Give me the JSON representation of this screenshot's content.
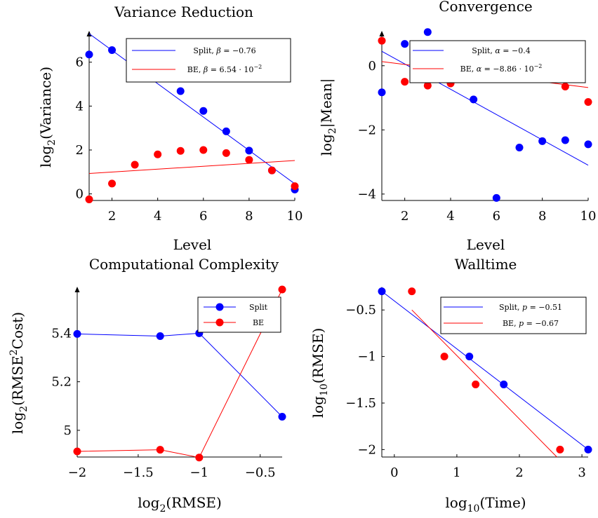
{
  "chart_data": [
    {
      "type": "scatter",
      "title": "Variance Reduction",
      "xlabel": "Level",
      "ylabel": "log2(Variance)",
      "ylabel_parts": {
        "pre": "log",
        "sub": "2",
        "post": "(Variance)"
      },
      "xlim": [
        1,
        10
      ],
      "ylim": [
        -0.3,
        7.3
      ],
      "xticks": [
        2,
        4,
        6,
        8,
        10
      ],
      "yticks": [
        0,
        2,
        4,
        6
      ],
      "legend_position": "top-right",
      "series": [
        {
          "name": "Split",
          "color": "#0000ff",
          "x": [
            1,
            2,
            5,
            6,
            7,
            8,
            9,
            10
          ],
          "y": [
            6.35,
            6.55,
            4.68,
            3.78,
            2.85,
            1.97,
            1.07,
            0.2
          ],
          "legend": {
            "label": "Split, ",
            "sym": "β",
            "eq": " = −0.76"
          },
          "fit": {
            "x": [
              1,
              10
            ],
            "y": [
              7.3,
              0.46
            ]
          }
        },
        {
          "name": "BE",
          "color": "#ff0000",
          "x": [
            1,
            2,
            3,
            4,
            5,
            6,
            7,
            8,
            9,
            10
          ],
          "y": [
            -0.25,
            0.47,
            1.33,
            1.8,
            1.96,
            2.0,
            1.86,
            1.55,
            1.07,
            0.35
          ],
          "legend": {
            "label": "BE, ",
            "sym": "β",
            "eq": " = 6.54 · 10",
            "sup": "−2"
          },
          "fit": {
            "x": [
              1,
              10
            ],
            "y": [
              0.93,
              1.52
            ]
          }
        }
      ]
    },
    {
      "type": "scatter",
      "title": "Convergence",
      "xlabel": "Level",
      "ylabel": "log2|Mean|",
      "ylabel_parts": {
        "pre": "log",
        "sub": "2",
        "post": "|Mean|"
      },
      "xlim": [
        1,
        10
      ],
      "ylim": [
        -4.2,
        1.0
      ],
      "xticks": [
        2,
        4,
        6,
        8,
        10
      ],
      "yticks": [
        -4,
        -2,
        0
      ],
      "legend_position": "top-right",
      "series": [
        {
          "name": "Split",
          "color": "#0000ff",
          "x": [
            1,
            2,
            3,
            5,
            6,
            7,
            8,
            9,
            10
          ],
          "y": [
            -0.83,
            0.68,
            1.05,
            -1.05,
            -4.12,
            -2.55,
            -2.35,
            -2.32,
            -2.45
          ],
          "legend": {
            "label": "Split, ",
            "sym": "α",
            "eq": " = −0.4"
          },
          "fit": {
            "x": [
              1,
              10
            ],
            "y": [
              0.45,
              -3.1
            ]
          }
        },
        {
          "name": "BE",
          "color": "#ff0000",
          "x": [
            1,
            2,
            3,
            4,
            9,
            10
          ],
          "y": [
            0.78,
            -0.5,
            -0.62,
            -0.55,
            -0.65,
            -1.13
          ],
          "legend": {
            "label": "BE, ",
            "sym": "α",
            "eq": " = −8.86 · 10",
            "sup": "−2"
          },
          "fit": {
            "x": [
              1,
              10
            ],
            "y": [
              0.13,
              -0.68
            ]
          }
        }
      ]
    },
    {
      "type": "line",
      "title": "Computational Complexity",
      "xlabel": "log2(RMSE)",
      "xlabel_parts": {
        "pre": "log",
        "sub": "2",
        "post": "(RMSE)"
      },
      "ylabel": "log2(RMSE2Cost)",
      "ylabel_parts": {
        "pre": "log",
        "sub": "2",
        "mid": "(RMSE",
        "sup": "2",
        "post": "Cost)"
      },
      "xlim": [
        -2,
        -0.32
      ],
      "ylim": [
        4.89,
        5.58
      ],
      "xticks": [
        -2,
        -1.5,
        -1,
        -0.5
      ],
      "xtick_labels": [
        "−2",
        "−1.5",
        "−1",
        "−0.5"
      ],
      "yticks": [
        5,
        5.2,
        5.4
      ],
      "ytick_labels": [
        "5",
        "5.2",
        "5.4"
      ],
      "legend_position": "top-right",
      "series": [
        {
          "name": "Split",
          "color": "#0000ff",
          "x": [
            -2.0,
            -1.32,
            -1.0,
            -0.32
          ],
          "y": [
            5.397,
            5.388,
            5.4,
            5.056
          ],
          "legend": {
            "label": "Split"
          }
        },
        {
          "name": "BE",
          "color": "#ff0000",
          "x": [
            -2.0,
            -1.32,
            -1.0,
            -0.32
          ],
          "y": [
            4.913,
            4.92,
            4.888,
            5.58
          ],
          "legend": {
            "label": "BE"
          }
        }
      ]
    },
    {
      "type": "scatter",
      "title": "Walltime",
      "xlabel": "log10(Time)",
      "xlabel_parts": {
        "pre": "log",
        "sub": "10",
        "post": "(Time)"
      },
      "ylabel": "log10(RMSE)",
      "ylabel_parts": {
        "pre": "log",
        "sub": "10",
        "post": "(RMSE)"
      },
      "xlim": [
        -0.2,
        3.1
      ],
      "ylim": [
        -2.08,
        -0.28
      ],
      "xticks": [
        0,
        1,
        2,
        3
      ],
      "yticks": [
        -2,
        -1.5,
        -1,
        -0.5
      ],
      "ytick_labels": [
        "−2",
        "−1.5",
        "−1",
        "−0.5"
      ],
      "legend_position": "top-right",
      "series": [
        {
          "name": "Split",
          "color": "#0000ff",
          "x": [
            -0.2,
            1.2,
            1.75,
            3.1
          ],
          "y": [
            -0.3,
            -1.0,
            -1.3,
            -2.0
          ],
          "legend": {
            "label": "Split, ",
            "sym": "p",
            "eq": " = −0.51"
          },
          "fit": {
            "x": [
              -0.2,
              3.1
            ],
            "y": [
              -0.3,
              -2.0
            ]
          }
        },
        {
          "name": "BE",
          "color": "#ff0000",
          "x": [
            0.28,
            0.8,
            1.3,
            2.65
          ],
          "y": [
            -0.3,
            -1.0,
            -1.3,
            -2.0
          ],
          "legend": {
            "label": "BE, ",
            "sym": "p",
            "eq": " = −0.67"
          },
          "fit": {
            "x": [
              0.28,
              2.6
            ],
            "y": [
              -0.5,
              -2.08
            ]
          }
        }
      ]
    }
  ]
}
